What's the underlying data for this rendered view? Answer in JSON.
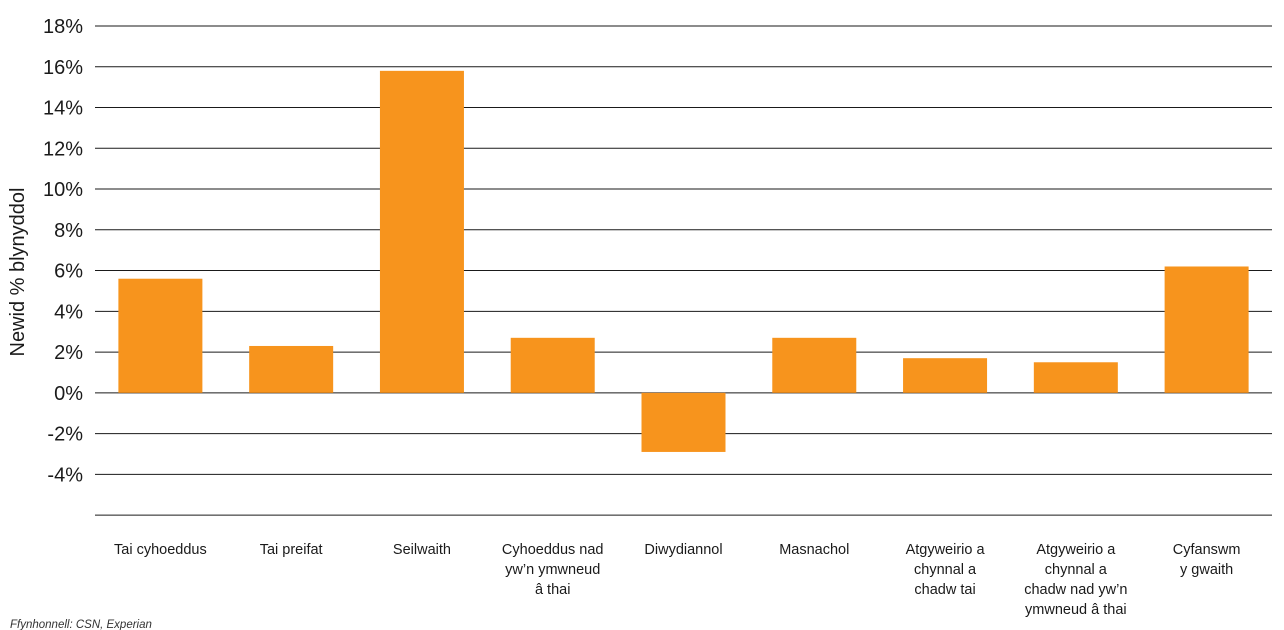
{
  "chart_data": {
    "type": "bar",
    "title": "",
    "xlabel": "",
    "ylabel": "Newid % blynyddol",
    "ylim": [
      -6,
      18
    ],
    "yticks": [
      18,
      16,
      14,
      12,
      10,
      8,
      6,
      4,
      2,
      0,
      -2,
      -4
    ],
    "ytick_labels": [
      "18%",
      "16%",
      "14%",
      "12%",
      "10%",
      "8%",
      "6%",
      "4%",
      "2%",
      "0%",
      "-2%",
      "-4%"
    ],
    "grid": true,
    "legend": "none",
    "categories": [
      [
        "Tai cyhoeddus"
      ],
      [
        "Tai preifat"
      ],
      [
        "Seilwaith"
      ],
      [
        "Cyhoeddus nad",
        "yw’n ymwneud",
        "â thai"
      ],
      [
        "Diwydiannol"
      ],
      [
        "Masnachol"
      ],
      [
        "Atgyweirio a",
        "chynnal a",
        "chadw tai"
      ],
      [
        "Atgyweirio a",
        "chynnal a",
        "chadw nad yw’n",
        "ymwneud â thai"
      ],
      [
        "Cyfanswm",
        "y gwaith"
      ]
    ],
    "values": [
      5.6,
      2.3,
      15.8,
      2.7,
      -2.9,
      2.7,
      1.7,
      1.5,
      6.2
    ],
    "bar_color": "#f7941d",
    "grid_color": "#1a1a1a"
  },
  "source_note": "Ffynhonnell: CSN, Experian"
}
